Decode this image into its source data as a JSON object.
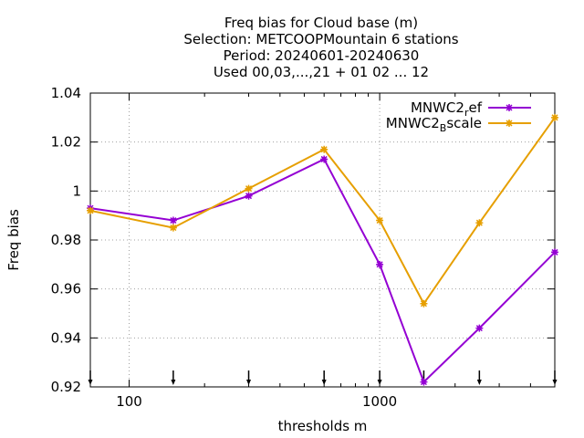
{
  "chart_data": {
    "type": "line",
    "title_lines": [
      "Freq bias  for Cloud base (m)",
      "Selection: METCOOPMountain      6 stations",
      "Period: 20240601-20240630",
      "Used 00,03,...,21 + 01 02 ... 12"
    ],
    "xlabel": "thresholds m",
    "ylabel": "Freq bias",
    "x_scale": "log",
    "xlim": [
      70,
      5000
    ],
    "ylim": [
      0.92,
      1.04
    ],
    "y_ticks": [
      "1.04",
      "1.02",
      "1",
      "0.98",
      "0.96",
      "0.94",
      "0.92"
    ],
    "x_ticks": [
      {
        "value": 100,
        "label": "100"
      },
      {
        "value": 1000,
        "label": "1000"
      }
    ],
    "threshold_markers": [
      70,
      150,
      300,
      600,
      1000,
      1500,
      2500,
      5000
    ],
    "grid": true,
    "legend_position": "top-right",
    "series": [
      {
        "name_main": "MNWC2",
        "name_sub": "r",
        "name_rest": "ef",
        "color": "#9400d3",
        "x": [
          70,
          150,
          300,
          600,
          1000,
          1500,
          2500,
          5000
        ],
        "y": [
          0.993,
          0.988,
          0.998,
          1.013,
          0.97,
          0.922,
          0.944,
          0.975
        ]
      },
      {
        "name_main": "MNWC2",
        "name_sub": "B",
        "name_rest": "scale",
        "color": "#e69f00",
        "x": [
          70,
          150,
          300,
          600,
          1000,
          1500,
          2500,
          5000
        ],
        "y": [
          0.992,
          0.985,
          1.001,
          1.017,
          0.988,
          0.954,
          0.987,
          1.03
        ]
      }
    ]
  }
}
